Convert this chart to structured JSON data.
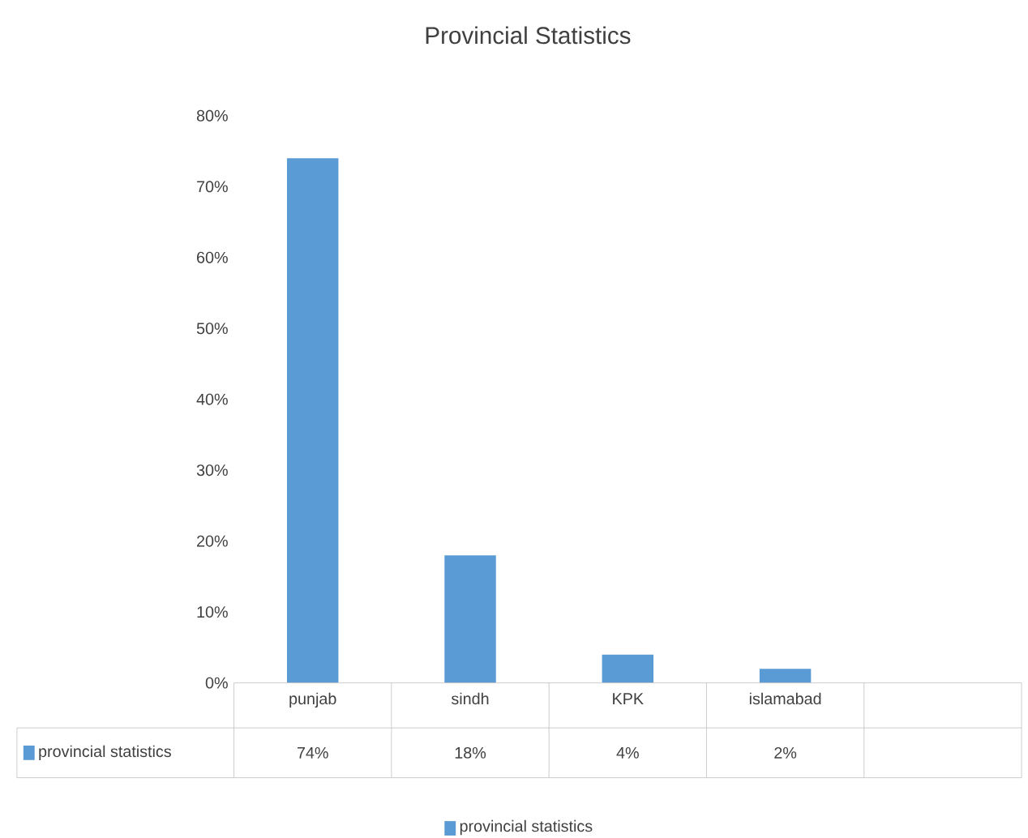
{
  "chart_data": {
    "type": "bar",
    "title": "Provincial Statistics",
    "categories": [
      "punjab",
      "sindh",
      "KPK",
      "islamabad",
      null
    ],
    "series": [
      {
        "name": "provincial statistics",
        "color": "#5b9bd5",
        "values": [
          74,
          18,
          4,
          2,
          null
        ],
        "value_labels": [
          "74%",
          "18%",
          "4%",
          "2%",
          null
        ]
      }
    ],
    "ylim": [
      0,
      80
    ],
    "yticks": [
      {
        "value": 0,
        "label": "0%"
      },
      {
        "value": 10,
        "label": "10%"
      },
      {
        "value": 20,
        "label": "20%"
      },
      {
        "value": 30,
        "label": "30%"
      },
      {
        "value": 40,
        "label": "40%"
      },
      {
        "value": 50,
        "label": "50%"
      },
      {
        "value": 60,
        "label": "60%"
      },
      {
        "value": 70,
        "label": "70%"
      },
      {
        "value": 80,
        "label": "80%"
      }
    ],
    "legend": "bottom"
  }
}
